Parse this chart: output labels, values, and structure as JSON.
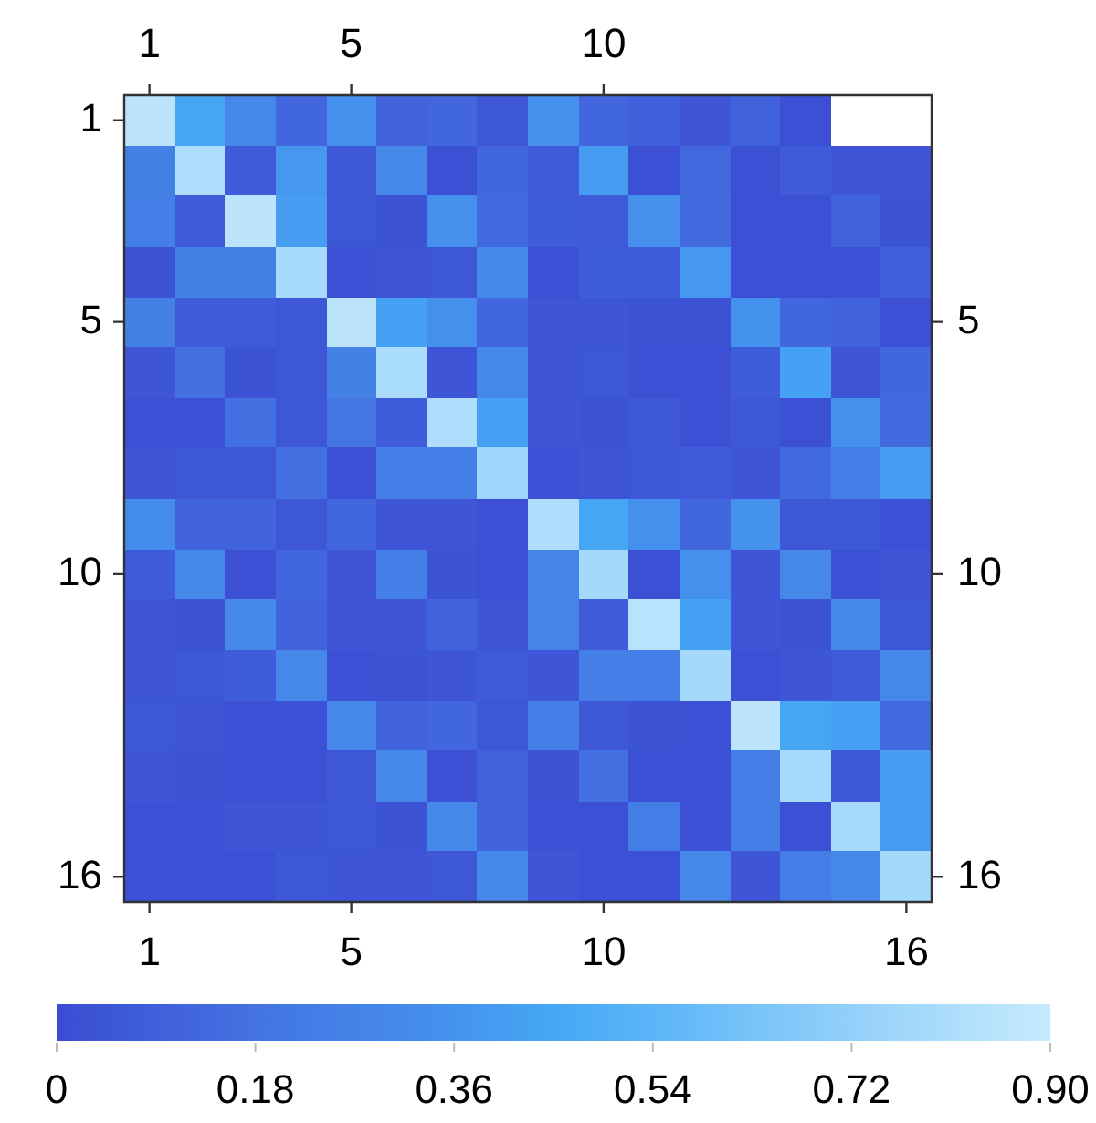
{
  "chart_data": {
    "type": "heatmap",
    "categories": [
      "1",
      null,
      null,
      null,
      "5",
      null,
      null,
      null,
      null,
      "10",
      null,
      null,
      null,
      null,
      null,
      "16"
    ],
    "y_categories": [
      "1",
      null,
      null,
      null,
      "5",
      null,
      null,
      null,
      null,
      "10",
      null,
      null,
      null,
      null,
      null,
      "16"
    ],
    "y2_categories": [
      null,
      null,
      null,
      null,
      "5",
      null,
      null,
      null,
      null,
      "10",
      null,
      null,
      null,
      null,
      null,
      "16"
    ],
    "x2lim": [
      0.5,
      16.5
    ],
    "x2ticks": [
      1,
      5,
      10
    ],
    "cells": [
      [
        0.86,
        0.44,
        0.3,
        0.12,
        0.34,
        0.11,
        0.12,
        0.05,
        0.34,
        0.12,
        0.09,
        0.04,
        0.1,
        0.02,
        null,
        null
      ],
      [
        0.26,
        0.82,
        0.07,
        0.38,
        0.05,
        0.3,
        0.02,
        0.12,
        0.07,
        0.4,
        0.02,
        0.13,
        0.02,
        0.07,
        0.04,
        0.04
      ],
      [
        0.25,
        0.07,
        0.86,
        0.4,
        0.05,
        0.03,
        0.35,
        0.14,
        0.08,
        0.07,
        0.35,
        0.14,
        0.02,
        0.02,
        0.1,
        0.03
      ],
      [
        0.03,
        0.26,
        0.26,
        0.79,
        0.02,
        0.04,
        0.05,
        0.3,
        0.02,
        0.08,
        0.08,
        0.38,
        0.02,
        0.02,
        0.02,
        0.09
      ],
      [
        0.26,
        0.07,
        0.07,
        0.05,
        0.86,
        0.42,
        0.34,
        0.12,
        0.04,
        0.04,
        0.03,
        0.03,
        0.36,
        0.12,
        0.1,
        0.02
      ],
      [
        0.04,
        0.17,
        0.03,
        0.05,
        0.26,
        0.8,
        0.04,
        0.3,
        0.04,
        0.05,
        0.02,
        0.02,
        0.08,
        0.42,
        0.04,
        0.12
      ],
      [
        0.02,
        0.02,
        0.17,
        0.05,
        0.2,
        0.08,
        0.82,
        0.42,
        0.04,
        0.03,
        0.05,
        0.02,
        0.05,
        0.02,
        0.34,
        0.14
      ],
      [
        0.04,
        0.05,
        0.05,
        0.17,
        0.02,
        0.24,
        0.25,
        0.76,
        0.02,
        0.04,
        0.05,
        0.07,
        0.04,
        0.14,
        0.25,
        0.4
      ],
      [
        0.33,
        0.11,
        0.11,
        0.05,
        0.12,
        0.04,
        0.04,
        0.02,
        0.82,
        0.44,
        0.35,
        0.12,
        0.36,
        0.05,
        0.05,
        0.02
      ],
      [
        0.07,
        0.3,
        0.02,
        0.12,
        0.04,
        0.25,
        0.03,
        0.02,
        0.28,
        0.78,
        0.02,
        0.34,
        0.04,
        0.3,
        0.02,
        0.04
      ],
      [
        0.04,
        0.03,
        0.3,
        0.11,
        0.04,
        0.04,
        0.1,
        0.04,
        0.28,
        0.07,
        0.85,
        0.42,
        0.04,
        0.03,
        0.3,
        0.05
      ],
      [
        0.04,
        0.05,
        0.08,
        0.3,
        0.02,
        0.03,
        0.04,
        0.07,
        0.04,
        0.25,
        0.25,
        0.78,
        0.02,
        0.04,
        0.07,
        0.3
      ],
      [
        0.05,
        0.04,
        0.02,
        0.02,
        0.3,
        0.11,
        0.12,
        0.05,
        0.25,
        0.05,
        0.03,
        0.02,
        0.86,
        0.44,
        0.42,
        0.14
      ],
      [
        0.04,
        0.03,
        0.02,
        0.02,
        0.05,
        0.3,
        0.02,
        0.1,
        0.03,
        0.17,
        0.02,
        0.02,
        0.24,
        0.79,
        0.05,
        0.4
      ],
      [
        0.02,
        0.02,
        0.04,
        0.04,
        0.05,
        0.03,
        0.3,
        0.11,
        0.02,
        0.02,
        0.24,
        0.02,
        0.25,
        0.02,
        0.79,
        0.4
      ],
      [
        0.02,
        0.02,
        0.02,
        0.05,
        0.04,
        0.04,
        0.05,
        0.3,
        0.04,
        0.02,
        0.02,
        0.3,
        0.04,
        0.24,
        0.3,
        0.78
      ]
    ],
    "clim": [
      0,
      0.9
    ],
    "cticks": [
      0,
      0.18,
      0.36,
      0.54,
      0.72,
      {
        "value": 0.9,
        "label": "0.90"
      }
    ]
  }
}
